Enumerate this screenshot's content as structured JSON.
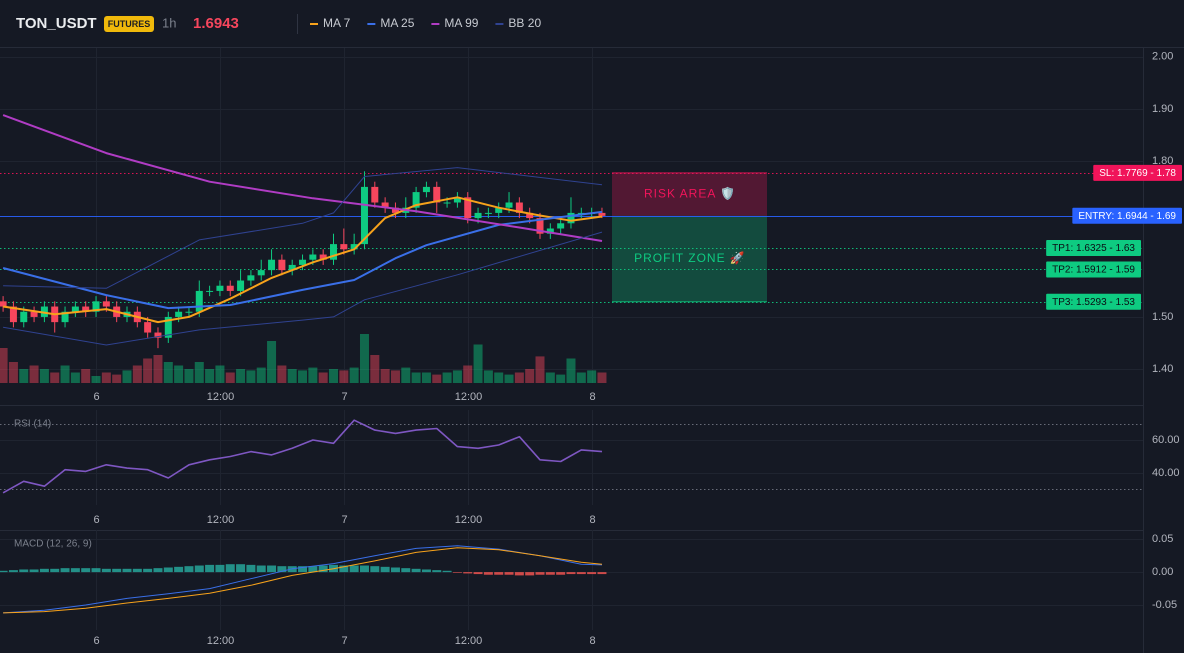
{
  "chart_data": [
    {
      "type": "candlestick",
      "title": "TON_USDT",
      "badge": "FUTURES",
      "interval": "1h",
      "price": 1.6943,
      "up_color": "#0ecb81",
      "down_color": "#f6465d",
      "x": [
        0,
        1,
        2,
        3,
        4,
        5,
        6,
        7,
        8,
        9,
        10,
        11,
        12,
        13,
        14,
        15,
        16,
        17,
        18,
        19,
        20,
        21,
        22,
        23,
        24,
        25,
        26,
        27,
        28,
        29,
        30,
        31,
        32,
        33,
        34,
        35,
        36,
        37,
        38,
        39,
        40,
        41,
        42,
        43,
        44,
        45,
        46,
        47,
        48,
        49,
        50,
        51,
        52,
        53,
        54,
        55,
        56,
        57,
        58
      ],
      "open": [
        1.53,
        1.52,
        1.49,
        1.51,
        1.5,
        1.52,
        1.49,
        1.51,
        1.52,
        1.51,
        1.53,
        1.52,
        1.5,
        1.51,
        1.49,
        1.47,
        1.46,
        1.5,
        1.51,
        1.51,
        1.55,
        1.55,
        1.56,
        1.55,
        1.57,
        1.58,
        1.59,
        1.61,
        1.59,
        1.6,
        1.61,
        1.62,
        1.61,
        1.64,
        1.63,
        1.64,
        1.75,
        1.72,
        1.71,
        1.7,
        1.71,
        1.74,
        1.75,
        1.72,
        1.72,
        1.73,
        1.69,
        1.7,
        1.7,
        1.71,
        1.72,
        1.7,
        1.69,
        1.66,
        1.67,
        1.68,
        1.7,
        1.7,
        1.7
      ],
      "high": [
        1.54,
        1.53,
        1.52,
        1.52,
        1.53,
        1.53,
        1.52,
        1.53,
        1.53,
        1.54,
        1.54,
        1.53,
        1.52,
        1.52,
        1.5,
        1.48,
        1.51,
        1.52,
        1.52,
        1.57,
        1.56,
        1.57,
        1.57,
        1.59,
        1.59,
        1.61,
        1.63,
        1.62,
        1.61,
        1.62,
        1.63,
        1.63,
        1.66,
        1.67,
        1.66,
        1.78,
        1.76,
        1.73,
        1.72,
        1.73,
        1.75,
        1.76,
        1.76,
        1.73,
        1.74,
        1.74,
        1.71,
        1.71,
        1.72,
        1.74,
        1.73,
        1.71,
        1.7,
        1.68,
        1.69,
        1.73,
        1.71,
        1.71,
        1.71
      ],
      "low": [
        1.51,
        1.48,
        1.48,
        1.49,
        1.49,
        1.47,
        1.48,
        1.5,
        1.5,
        1.5,
        1.51,
        1.49,
        1.49,
        1.48,
        1.46,
        1.44,
        1.45,
        1.49,
        1.5,
        1.5,
        1.54,
        1.54,
        1.54,
        1.54,
        1.56,
        1.57,
        1.58,
        1.58,
        1.58,
        1.59,
        1.6,
        1.6,
        1.6,
        1.62,
        1.62,
        1.63,
        1.71,
        1.7,
        1.69,
        1.69,
        1.7,
        1.73,
        1.7,
        1.71,
        1.71,
        1.68,
        1.68,
        1.69,
        1.69,
        1.7,
        1.69,
        1.68,
        1.65,
        1.65,
        1.66,
        1.67,
        1.69,
        1.69,
        1.69
      ],
      "close": [
        1.52,
        1.49,
        1.51,
        1.5,
        1.52,
        1.49,
        1.51,
        1.52,
        1.51,
        1.53,
        1.52,
        1.5,
        1.51,
        1.49,
        1.47,
        1.46,
        1.5,
        1.51,
        1.51,
        1.55,
        1.55,
        1.56,
        1.55,
        1.57,
        1.58,
        1.59,
        1.61,
        1.59,
        1.6,
        1.61,
        1.62,
        1.61,
        1.64,
        1.63,
        1.64,
        1.75,
        1.72,
        1.71,
        1.7,
        1.71,
        1.74,
        1.75,
        1.72,
        1.72,
        1.73,
        1.69,
        1.7,
        1.7,
        1.71,
        1.72,
        1.7,
        1.69,
        1.66,
        1.67,
        1.68,
        1.7,
        1.7,
        1.7,
        1.6943
      ],
      "series": [
        {
          "name": "MA 7",
          "color": "#f7a21b",
          "x": [
            0,
            5,
            10,
            15,
            18,
            22,
            26,
            30,
            34,
            37,
            40,
            44,
            48,
            52,
            55,
            58
          ],
          "values": [
            1.52,
            1.505,
            1.515,
            1.49,
            1.5,
            1.535,
            1.575,
            1.605,
            1.63,
            1.69,
            1.715,
            1.73,
            1.71,
            1.695,
            1.685,
            1.693
          ]
        },
        {
          "name": "MA 25",
          "color": "#3a6fe8",
          "x": [
            0,
            10,
            16,
            22,
            29,
            34,
            38,
            41,
            48,
            58
          ],
          "values": [
            1.594,
            1.542,
            1.517,
            1.523,
            1.552,
            1.571,
            1.613,
            1.638,
            1.677,
            1.702
          ]
        },
        {
          "name": "MA 99",
          "color": "#b03cc4",
          "x": [
            0,
            10,
            20,
            30,
            40,
            50,
            58
          ],
          "values": [
            1.888,
            1.815,
            1.76,
            1.728,
            1.703,
            1.672,
            1.646
          ]
        },
        {
          "name": "BB 20",
          "color": "#2f4290",
          "x": [
            0,
            10,
            19,
            29,
            32,
            35,
            44,
            58
          ],
          "upper": [
            1.56,
            1.555,
            1.648,
            1.68,
            1.7,
            1.77,
            1.787,
            1.754
          ],
          "lower": [
            1.48,
            1.446,
            1.475,
            1.494,
            1.5,
            1.533,
            1.581,
            1.663
          ]
        }
      ],
      "levels": [
        {
          "value": 1.7769,
          "label": "SL: 1.7769 - 1.78",
          "color": "#f0145a",
          "text_color": "#ffffff",
          "style": "dotted"
        },
        {
          "value": 1.6944,
          "label": "ENTRY: 1.6944 - 1.69",
          "color": "#2962ff",
          "text_color": "#ffffff",
          "style": "solid"
        },
        {
          "value": 1.6325,
          "label": "TP1: 1.6325 - 1.63",
          "color": "#0ecb81",
          "text_color": "#0b0e14",
          "style": "dotted"
        },
        {
          "value": 1.5912,
          "label": "TP2: 1.5912 - 1.59",
          "color": "#0ecb81",
          "text_color": "#0b0e14",
          "style": "dotted"
        },
        {
          "value": 1.5293,
          "label": "TP3: 1.5293 - 1.53",
          "color": "#0ecb81",
          "text_color": "#0b0e14",
          "style": "dotted"
        }
      ],
      "zones": [
        {
          "label": "RISK AREA 🛡️",
          "from": 1.6944,
          "to": 1.7769,
          "color": "#f0145a"
        },
        {
          "label": "PROFIT ZONE 🚀",
          "from": 1.5293,
          "to": 1.6944,
          "color": "#0ecb81"
        }
      ],
      "xlim": [
        -0.3,
        110.4
      ],
      "ylim": [
        1.373,
        2.017
      ],
      "xticks": [
        {
          "value": 9,
          "label": "6"
        },
        {
          "value": 21,
          "label": "12:00"
        },
        {
          "value": 33,
          "label": "7"
        },
        {
          "value": 45,
          "label": "12:00"
        },
        {
          "value": 57,
          "label": "8"
        }
      ],
      "yticks": [
        {
          "value": 1.4,
          "label": "1.40"
        },
        {
          "value": 1.5,
          "label": "1.50"
        },
        {
          "value": 1.8,
          "label": "1.80"
        },
        {
          "value": 1.9,
          "label": "1.90"
        },
        {
          "value": 2,
          "label": "2.00"
        }
      ]
    },
    {
      "type": "bar",
      "x": [
        0,
        1,
        2,
        3,
        4,
        5,
        6,
        7,
        8,
        9,
        10,
        11,
        12,
        13,
        14,
        15,
        16,
        17,
        18,
        19,
        20,
        21,
        22,
        23,
        24,
        25,
        26,
        27,
        28,
        29,
        30,
        31,
        32,
        33,
        34,
        35,
        36,
        37,
        38,
        39,
        40,
        41,
        42,
        43,
        44,
        45,
        46,
        47,
        48,
        49,
        50,
        51,
        52,
        53,
        54,
        55,
        56,
        57,
        58
      ],
      "values": [
        50,
        30,
        20,
        25,
        20,
        15,
        25,
        15,
        20,
        10,
        15,
        12,
        18,
        25,
        35,
        40,
        30,
        25,
        20,
        30,
        20,
        25,
        15,
        20,
        18,
        22,
        60,
        25,
        20,
        18,
        22,
        15,
        20,
        18,
        22,
        70,
        40,
        20,
        18,
        22,
        15,
        15,
        12,
        15,
        18,
        25,
        55,
        18,
        15,
        12,
        15,
        20,
        38,
        15,
        12,
        35,
        15,
        18,
        15
      ],
      "xlim": [
        -0.3,
        110.4
      ],
      "ylim": [
        0,
        100
      ]
    },
    {
      "type": "line",
      "title": "RSI (14)",
      "color": "#7e57c2",
      "x": [
        0,
        2,
        4,
        6,
        8,
        10,
        12,
        14,
        16,
        18,
        20,
        22,
        24,
        26,
        28,
        30,
        32,
        34,
        36,
        38,
        40,
        42,
        44,
        46,
        48,
        50,
        52,
        54,
        56,
        58
      ],
      "values": [
        28,
        35,
        32,
        42,
        41,
        45,
        43,
        42,
        37,
        45,
        48,
        50,
        53,
        51,
        55,
        60,
        58,
        72,
        66,
        64,
        66,
        67,
        56,
        55,
        57,
        62,
        48,
        47,
        54,
        53
      ],
      "bands": [
        30,
        70
      ],
      "xlim": [
        -0.3,
        110.4
      ],
      "ylim": [
        20.6,
        78.2
      ],
      "xticks": [
        {
          "value": 9,
          "label": "6"
        },
        {
          "value": 21,
          "label": "12:00"
        },
        {
          "value": 33,
          "label": "7"
        },
        {
          "value": 45,
          "label": "12:00"
        },
        {
          "value": 57,
          "label": "8"
        }
      ],
      "yticks": [
        {
          "value": 40,
          "label": "40.00"
        },
        {
          "value": 60,
          "label": "60.00"
        }
      ]
    },
    {
      "type": "macd",
      "title": "MACD (12, 26, 9)",
      "up_color": "#26a69a",
      "down_color": "#ef5350",
      "x": [
        0,
        1,
        2,
        3,
        4,
        5,
        6,
        7,
        8,
        9,
        10,
        11,
        12,
        13,
        14,
        15,
        16,
        17,
        18,
        19,
        20,
        21,
        22,
        23,
        24,
        25,
        26,
        27,
        28,
        29,
        30,
        31,
        32,
        33,
        34,
        35,
        36,
        37,
        38,
        39,
        40,
        41,
        42,
        43,
        44,
        45,
        46,
        47,
        48,
        49,
        50,
        51,
        52,
        53,
        54,
        55,
        56,
        57,
        58
      ],
      "histogram": [
        0.002,
        0.003,
        0.004,
        0.004,
        0.005,
        0.005,
        0.006,
        0.006,
        0.006,
        0.006,
        0.005,
        0.005,
        0.005,
        0.005,
        0.005,
        0.006,
        0.007,
        0.008,
        0.009,
        0.01,
        0.011,
        0.011,
        0.012,
        0.012,
        0.011,
        0.01,
        0.01,
        0.009,
        0.009,
        0.009,
        0.009,
        0.01,
        0.011,
        0.01,
        0.01,
        0.01,
        0.009,
        0.008,
        0.007,
        0.006,
        0.005,
        0.004,
        0.003,
        0.002,
        -0.001,
        -0.002,
        -0.003,
        -0.004,
        -0.004,
        -0.004,
        -0.005,
        -0.005,
        -0.004,
        -0.004,
        -0.004,
        -0.003,
        -0.003,
        -0.003,
        -0.003
      ],
      "series": [
        {
          "color": "#3a6fe8",
          "x": [
            0,
            4,
            8,
            12,
            16,
            20,
            24,
            28,
            32,
            36,
            40,
            44,
            48,
            52,
            56,
            58
          ],
          "values": [
            -0.062,
            -0.058,
            -0.05,
            -0.04,
            -0.033,
            -0.025,
            -0.01,
            0.005,
            0.013,
            0.025,
            0.036,
            0.04,
            0.035,
            0.025,
            0.012,
            0.011
          ]
        },
        {
          "color": "#f7a21b",
          "x": [
            0,
            4,
            8,
            12,
            16,
            20,
            24,
            28,
            32,
            36,
            40,
            44,
            48,
            52,
            56,
            58
          ],
          "values": [
            -0.062,
            -0.06,
            -0.055,
            -0.047,
            -0.04,
            -0.032,
            -0.02,
            -0.005,
            0.005,
            0.017,
            0.03,
            0.037,
            0.034,
            0.025,
            0.015,
            0.012
          ]
        }
      ],
      "xlim": [
        -0.3,
        110.4
      ],
      "ylim": [
        -0.088,
        0.064
      ],
      "xticks": [
        {
          "value": 9,
          "label": "6"
        },
        {
          "value": 21,
          "label": "12:00"
        },
        {
          "value": 33,
          "label": "7"
        },
        {
          "value": 45,
          "label": "12:00"
        },
        {
          "value": 57,
          "label": "8"
        }
      ],
      "yticks": [
        {
          "value": -0.05,
          "label": "-0.05"
        },
        {
          "value": 0,
          "label": "0.00"
        },
        {
          "value": 0.05,
          "label": "0.05"
        }
      ]
    }
  ]
}
